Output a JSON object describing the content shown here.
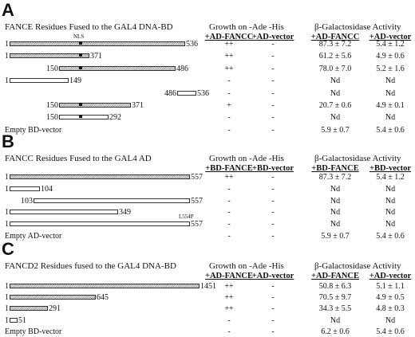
{
  "panels": [
    {
      "label": "A",
      "title": "FANCE Residues Fused to the GAL4 DNA-BD",
      "growth_header": "Growth on -Ade -His",
      "beta_header": "β-Galactosidase Activity",
      "col_headers": [
        "+AD-FANCC",
        "+AD-vector",
        "+AD-FANCC",
        "+AD-vector"
      ],
      "rows": [
        {
          "start": "1",
          "end": "536",
          "nls": true,
          "nls_label": "NLS",
          "g1": "++",
          "g2": "-",
          "b1": "87.3 ± 7.2",
          "b2": "5.4 ± 1.2"
        },
        {
          "start": "1",
          "end": "371",
          "nls": true,
          "g1": "++",
          "g2": "-",
          "b1": "61.2 ± 5.6",
          "b2": "4.9 ± 0.6"
        },
        {
          "start": "150",
          "end": "486",
          "nls": true,
          "g1": "++",
          "g2": "-",
          "b1": "78.0 ± 7.0",
          "b2": "5.2 ± 1.6"
        },
        {
          "start": "1",
          "end": "149",
          "nls": false,
          "g1": "-",
          "g2": "-",
          "b1": "Nd",
          "b2": "Nd"
        },
        {
          "start": "486",
          "end": "536",
          "nls": false,
          "g1": "-",
          "g2": "-",
          "b1": "Nd",
          "b2": "Nd"
        },
        {
          "start": "150",
          "end": "371",
          "nls": true,
          "g1": "+",
          "g2": "-",
          "b1": "20.7 ± 0.6",
          "b2": "4.9 ± 0.1"
        },
        {
          "start": "150",
          "end": "292",
          "nls": true,
          "g1": "-",
          "g2": "-",
          "b1": "Nd",
          "b2": "Nd"
        },
        {
          "label": "Empty BD-vector",
          "g1": "-",
          "g2": "-",
          "b1": "5.9 ± 0.7",
          "b2": "5.4 ± 0.6"
        }
      ]
    },
    {
      "label": "B",
      "title": "FANCC Residues Fused to the GAL4 AD",
      "growth_header": "Growth on -Ade -His",
      "beta_header": "β-Galactosidase Activity",
      "col_headers": [
        "+BD-FANCE",
        "+BD-vector",
        "+BD-FANCE",
        "+BD-vector"
      ],
      "rows": [
        {
          "start": "1",
          "end": "557",
          "g1": "++",
          "g2": "-",
          "b1": "87.3 ± 7.2",
          "b2": "5.4 ± 1.2"
        },
        {
          "start": "1",
          "end": "104",
          "g1": "-",
          "g2": "-",
          "b1": "Nd",
          "b2": "Nd"
        },
        {
          "start": "103",
          "end": "557",
          "g1": "-",
          "g2": "-",
          "b1": "Nd",
          "b2": "Nd"
        },
        {
          "start": "1",
          "end": "349",
          "g1": "-",
          "g2": "-",
          "b1": "Nd",
          "b2": "Nd"
        },
        {
          "start": "1",
          "end": "557",
          "mutation": "L554P",
          "g1": "-",
          "g2": "-",
          "b1": "Nd",
          "b2": "Nd"
        },
        {
          "label": "Empty AD-vector",
          "g1": "-",
          "g2": "-",
          "b1": "5.9 ± 0.7",
          "b2": "5.4 ± 0.6"
        }
      ]
    },
    {
      "label": "C",
      "title": "FANCD2 Residues fused to the GAL4 DNA-BD",
      "growth_header": "Growth on -Ade -His",
      "beta_header": "β-Galactosidase Activity",
      "col_headers": [
        "+AD-FANCE",
        "+AD-vector",
        "+AD-FANCE",
        "+AD-vector"
      ],
      "rows": [
        {
          "start": "1",
          "end": "1451",
          "g1": "++",
          "g2": "-",
          "b1": "50.8 ± 6.3",
          "b2": "5.1 ± 1.1"
        },
        {
          "start": "1",
          "end": "645",
          "g1": "++",
          "g2": "-",
          "b1": "70.5 ± 9.7",
          "b2": "4.9 ± 0.5"
        },
        {
          "start": "1",
          "end": "291",
          "g1": "++",
          "g2": "-",
          "b1": "34.3 ± 5.5",
          "b2": "4.8 ± 0.3"
        },
        {
          "start": "1",
          "end": "51",
          "g1": "-",
          "g2": "-",
          "b1": "Nd",
          "b2": "Nd"
        },
        {
          "label": "Empty BD-vector",
          "g1": "-",
          "g2": "-",
          "b1": "6.2 ± 0.6",
          "b2": "5.4 ± 0.6"
        }
      ]
    }
  ]
}
